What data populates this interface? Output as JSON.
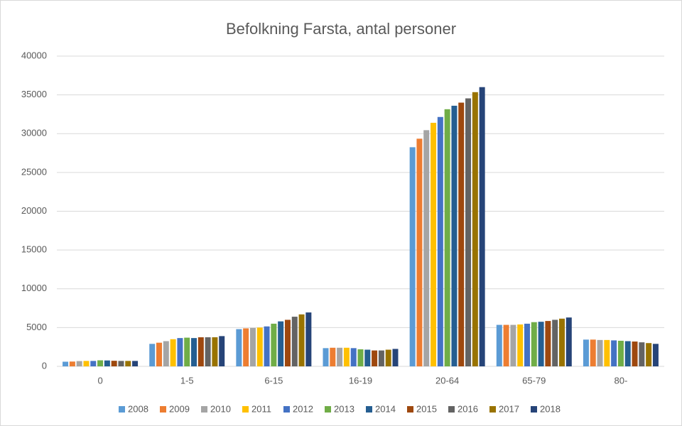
{
  "chart_data": {
    "type": "bar",
    "title": "Befolkning Farsta, antal personer",
    "categories": [
      "0",
      "1-5",
      "6-15",
      "16-19",
      "20-64",
      "65-79",
      "80-"
    ],
    "series": [
      {
        "name": "2008",
        "color": "#5b9bd5",
        "values": [
          600,
          2900,
          4800,
          2350,
          28250,
          5350,
          3450
        ]
      },
      {
        "name": "2009",
        "color": "#ed7d31",
        "values": [
          620,
          3050,
          4900,
          2400,
          29350,
          5350,
          3450
        ]
      },
      {
        "name": "2010",
        "color": "#a5a5a5",
        "values": [
          680,
          3250,
          4950,
          2400,
          30450,
          5350,
          3400
        ]
      },
      {
        "name": "2011",
        "color": "#ffc000",
        "values": [
          700,
          3500,
          5000,
          2400,
          31400,
          5400,
          3400
        ]
      },
      {
        "name": "2012",
        "color": "#4472c4",
        "values": [
          700,
          3650,
          5150,
          2350,
          32150,
          5500,
          3350
        ]
      },
      {
        "name": "2013",
        "color": "#70ad47",
        "values": [
          780,
          3700,
          5500,
          2200,
          33150,
          5700,
          3300
        ]
      },
      {
        "name": "2014",
        "color": "#255e91",
        "values": [
          760,
          3650,
          5800,
          2150,
          33600,
          5750,
          3250
        ]
      },
      {
        "name": "2015",
        "color": "#9e480e",
        "values": [
          720,
          3750,
          6000,
          2050,
          34000,
          5850,
          3200
        ]
      },
      {
        "name": "2016",
        "color": "#636363",
        "values": [
          700,
          3750,
          6400,
          2050,
          34550,
          6000,
          3100
        ]
      },
      {
        "name": "2017",
        "color": "#997300",
        "values": [
          700,
          3750,
          6700,
          2150,
          35350,
          6150,
          3000
        ]
      },
      {
        "name": "2018",
        "color": "#264478",
        "values": [
          700,
          3900,
          6950,
          2250,
          36000,
          6300,
          2900
        ]
      }
    ],
    "ylim": [
      0,
      40000
    ],
    "yticks": [
      0,
      5000,
      10000,
      15000,
      20000,
      25000,
      30000,
      35000,
      40000
    ],
    "grid": true
  }
}
